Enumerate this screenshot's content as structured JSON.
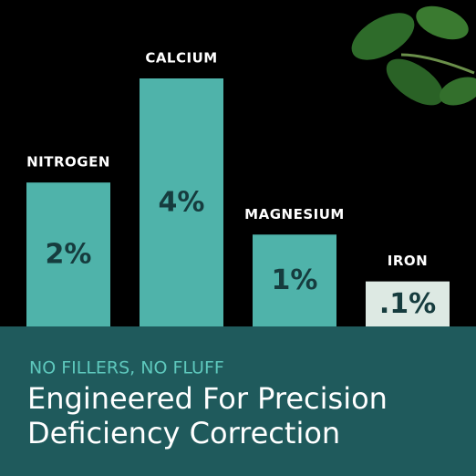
{
  "chart_data": {
    "type": "bar",
    "categories": [
      "NITROGEN",
      "CALCIUM",
      "MAGNESIUM",
      "IRON"
    ],
    "values": [
      2,
      4,
      1,
      0.1
    ],
    "value_labels": [
      "2%",
      "4%",
      "1%",
      ".1%"
    ],
    "colors": [
      "#4fb3aa",
      "#4fb3aa",
      "#4fb3aa",
      "#dde9e3"
    ],
    "ylim": [
      -0.8,
      4
    ],
    "tagline": "NO FILLERS, NO FLUFF",
    "headline": [
      "Engineered For Precision",
      "Deficiency Correction"
    ]
  }
}
